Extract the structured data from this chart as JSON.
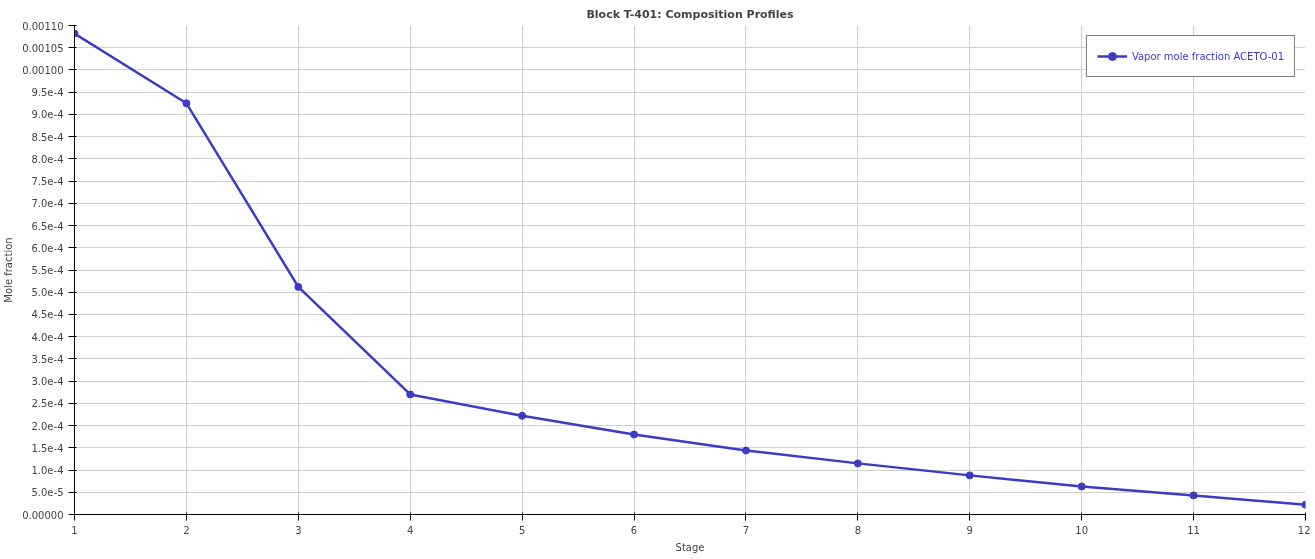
{
  "chart_data": {
    "type": "line",
    "title": "Block T-401: Composition Profiles",
    "xlabel": "Stage",
    "ylabel": "Mole fraction",
    "x": [
      1,
      2,
      3,
      4,
      5,
      6,
      7,
      8,
      9,
      10,
      11,
      12
    ],
    "series": [
      {
        "name": "Vapor mole fraction ACETO-01",
        "color": "#3b3bc4",
        "values": [
          0.001082,
          0.000925,
          0.000512,
          0.00027,
          0.000222,
          0.00018,
          0.000144,
          0.000115,
          8.8e-05,
          6.3e-05,
          4.3e-05,
          2.2e-05
        ]
      }
    ],
    "xlim": [
      1,
      12
    ],
    "xticks": [
      1,
      2,
      3,
      4,
      5,
      6,
      7,
      8,
      9,
      10,
      11,
      12
    ],
    "ylim": [
      0,
      0.0011
    ],
    "yticks": [
      {
        "value": 0,
        "label": "0.00000"
      },
      {
        "value": 5e-05,
        "label": "5.0e-5"
      },
      {
        "value": 0.0001,
        "label": "1.0e-4"
      },
      {
        "value": 0.00015,
        "label": "1.5e-4"
      },
      {
        "value": 0.0002,
        "label": "2.0e-4"
      },
      {
        "value": 0.00025,
        "label": "2.5e-4"
      },
      {
        "value": 0.0003,
        "label": "3.0e-4"
      },
      {
        "value": 0.00035,
        "label": "3.5e-4"
      },
      {
        "value": 0.0004,
        "label": "4.0e-4"
      },
      {
        "value": 0.00045,
        "label": "4.5e-4"
      },
      {
        "value": 0.0005,
        "label": "5.0e-4"
      },
      {
        "value": 0.00055,
        "label": "5.5e-4"
      },
      {
        "value": 0.0006,
        "label": "6.0e-4"
      },
      {
        "value": 0.00065,
        "label": "6.5e-4"
      },
      {
        "value": 0.0007,
        "label": "7.0e-4"
      },
      {
        "value": 0.00075,
        "label": "7.5e-4"
      },
      {
        "value": 0.0008,
        "label": "8.0e-4"
      },
      {
        "value": 0.00085,
        "label": "8.5e-4"
      },
      {
        "value": 0.0009,
        "label": "9.0e-4"
      },
      {
        "value": 0.00095,
        "label": "9.5e-4"
      },
      {
        "value": 0.001,
        "label": "0.00100"
      },
      {
        "value": 0.00105,
        "label": "0.00105"
      },
      {
        "value": 0.0011,
        "label": "0.00110"
      }
    ],
    "grid": true,
    "legend": "top right",
    "marker": "circle",
    "line_style": "solid"
  }
}
